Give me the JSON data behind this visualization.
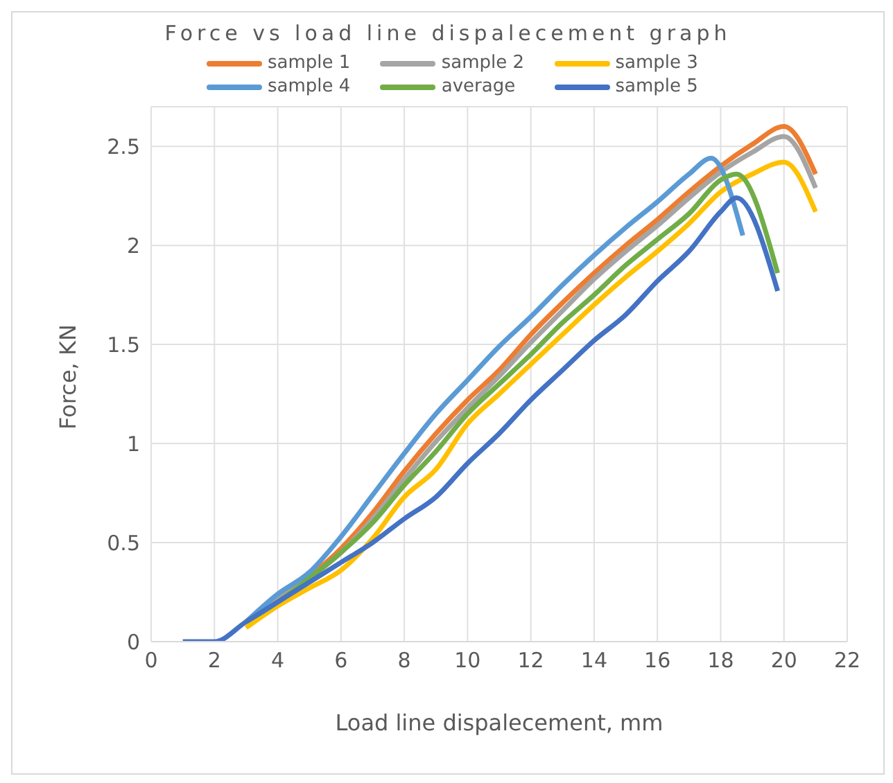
{
  "chart_data": {
    "type": "line",
    "title": "Force vs load line dispalecement graph",
    "xlabel": "Load line dispalecement, mm",
    "ylabel": "Force, KN",
    "xlim": [
      0,
      22
    ],
    "xticks": [
      0,
      2,
      4,
      6,
      8,
      10,
      12,
      14,
      16,
      18,
      20,
      22
    ],
    "ylim": [
      0,
      2.7
    ],
    "yticks": [
      0,
      0.5,
      1,
      1.5,
      2,
      2.5
    ],
    "grid": true,
    "legend": "top",
    "marker": "none",
    "line_style": "solid",
    "series": [
      {
        "name": "sample 1",
        "color": "#ed7d31",
        "x": [
          4,
          5,
          6,
          7,
          8,
          9,
          10,
          11,
          12,
          13,
          14,
          15,
          16,
          17,
          18,
          19,
          20,
          21
        ],
        "values": [
          0.22,
          0.33,
          0.47,
          0.65,
          0.86,
          1.05,
          1.22,
          1.37,
          1.55,
          1.71,
          1.86,
          2.0,
          2.13,
          2.27,
          2.4,
          2.51,
          2.6,
          2.36
        ]
      },
      {
        "name": "sample 2",
        "color": "#a5a5a5",
        "x": [
          3,
          4,
          5,
          6,
          7,
          8,
          9,
          10,
          11,
          12,
          13,
          14,
          15,
          16,
          17,
          18,
          19,
          20,
          21
        ],
        "values": [
          0.1,
          0.21,
          0.32,
          0.45,
          0.62,
          0.82,
          1.01,
          1.18,
          1.34,
          1.51,
          1.67,
          1.83,
          1.97,
          2.1,
          2.24,
          2.37,
          2.47,
          2.55,
          2.29
        ]
      },
      {
        "name": "sample 3",
        "color": "#ffc000",
        "x": [
          3,
          4,
          5,
          6,
          7,
          8,
          9,
          10,
          11,
          12,
          13,
          14,
          15,
          16,
          17,
          18,
          19,
          20,
          21
        ],
        "values": [
          0.07,
          0.18,
          0.27,
          0.36,
          0.52,
          0.73,
          0.87,
          1.1,
          1.25,
          1.4,
          1.55,
          1.7,
          1.84,
          1.97,
          2.11,
          2.27,
          2.36,
          2.42,
          2.17
        ]
      },
      {
        "name": "sample 4",
        "color": "#5b9bd5",
        "x": [
          3,
          4,
          5,
          6,
          7,
          8,
          9,
          10,
          11,
          12,
          13,
          14,
          15,
          16,
          17,
          17.7,
          18.7
        ],
        "values": [
          0.1,
          0.24,
          0.35,
          0.53,
          0.74,
          0.95,
          1.15,
          1.32,
          1.49,
          1.64,
          1.8,
          1.95,
          2.09,
          2.22,
          2.36,
          2.44,
          2.05
        ]
      },
      {
        "name": "average",
        "color": "#70ad47",
        "x": [
          3,
          4,
          5,
          6,
          7,
          8,
          9,
          10,
          11,
          12,
          13,
          14,
          15,
          16,
          17,
          18,
          18.5,
          19.8
        ],
        "values": [
          0.1,
          0.2,
          0.32,
          0.45,
          0.6,
          0.79,
          0.96,
          1.15,
          1.3,
          1.45,
          1.61,
          1.75,
          1.9,
          2.03,
          2.16,
          2.33,
          2.36,
          1.86
        ]
      },
      {
        "name": "sample 5",
        "color": "#4472c4",
        "x": [
          1,
          2,
          3,
          4,
          5,
          6,
          7,
          8,
          9,
          10,
          11,
          12,
          13,
          14,
          15,
          16,
          17,
          18,
          18.5,
          19.8
        ],
        "values": [
          0,
          0,
          0.1,
          0.2,
          0.3,
          0.4,
          0.5,
          0.62,
          0.73,
          0.9,
          1.05,
          1.22,
          1.37,
          1.52,
          1.65,
          1.82,
          1.97,
          2.17,
          2.24,
          1.77
        ]
      }
    ]
  }
}
